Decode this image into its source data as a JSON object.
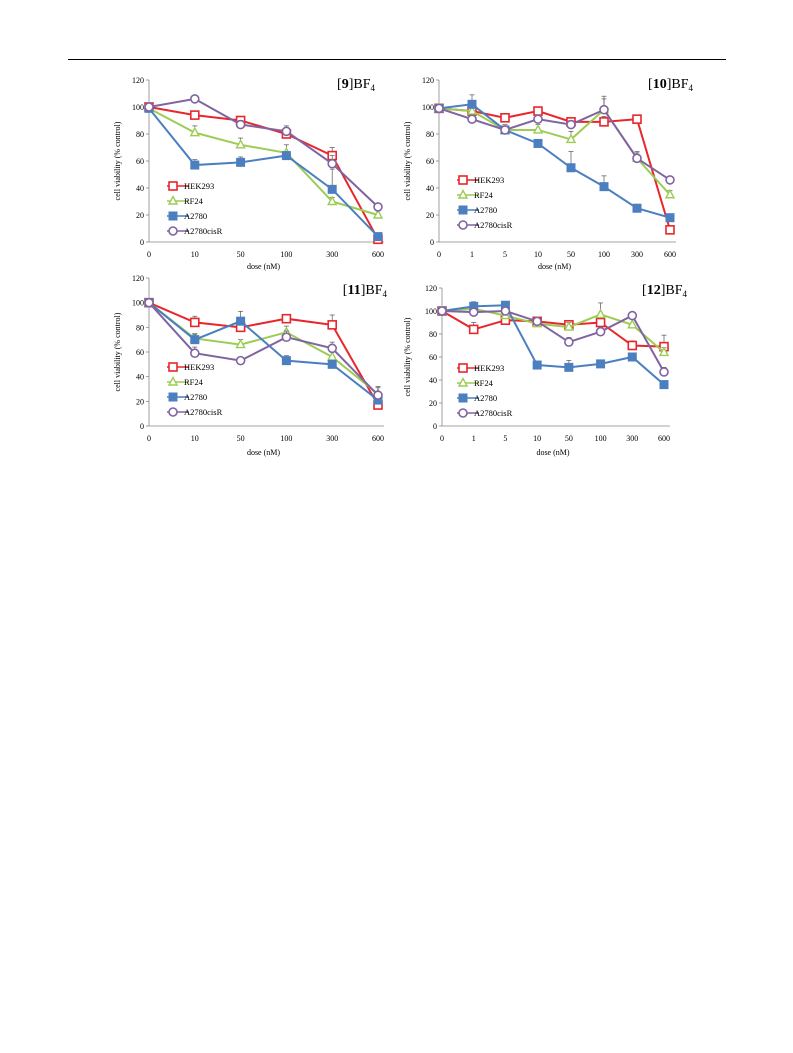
{
  "chart_data": [
    {
      "type": "line",
      "title_bold": "9",
      "title_rest": "BF",
      "title_sub": "4",
      "xlabel": "dose (nM)",
      "ylabel": "cell viability  (% control)",
      "categories": [
        "0",
        "10",
        "50",
        "100",
        "300",
        "600"
      ],
      "ylim": [
        0,
        120
      ],
      "yticks": [
        0,
        20,
        40,
        60,
        80,
        100,
        120
      ],
      "legend_position": "bottom-left",
      "series": [
        {
          "name": "HEK293",
          "color": "#e8262b",
          "marker": "square-open",
          "values": [
            100,
            94,
            90,
            80,
            64,
            2
          ],
          "errors": [
            3,
            2,
            3,
            3,
            6,
            2
          ]
        },
        {
          "name": "RF24",
          "color": "#9ccc54",
          "marker": "triangle-open",
          "values": [
            99,
            81,
            72,
            66,
            30,
            20
          ],
          "errors": [
            3,
            5,
            5,
            6,
            3,
            3
          ]
        },
        {
          "name": "A2780",
          "color": "#4b7fc0",
          "marker": "square-filled",
          "values": [
            99,
            57,
            59,
            64,
            39,
            4
          ],
          "errors": [
            3,
            4,
            4,
            3,
            15,
            2
          ]
        },
        {
          "name": "A2780cisR",
          "color": "#8064a2",
          "marker": "circle-open",
          "values": [
            100,
            106,
            87,
            82,
            58,
            26
          ],
          "errors": [
            3,
            2,
            3,
            4,
            6,
            2
          ]
        }
      ]
    },
    {
      "type": "line",
      "title_bold": "10",
      "title_rest": "BF",
      "title_sub": "4",
      "xlabel": "dose (nM)",
      "ylabel": "cell viability  (% control)",
      "categories": [
        "0",
        "1",
        "5",
        "10",
        "50",
        "100",
        "300",
        "600"
      ],
      "ylim": [
        0,
        120
      ],
      "yticks": [
        0,
        20,
        40,
        60,
        80,
        100,
        120
      ],
      "legend_position": "bottom-left",
      "series": [
        {
          "name": "HEK293",
          "color": "#e8262b",
          "marker": "square-open",
          "values": [
            99,
            97,
            92,
            97,
            89,
            89,
            91,
            9
          ],
          "errors": [
            2,
            2,
            3,
            3,
            3,
            4,
            2,
            2
          ]
        },
        {
          "name": "RF24",
          "color": "#9ccc54",
          "marker": "triangle-open",
          "values": [
            99,
            97,
            83,
            83,
            76,
            98,
            62,
            35
          ],
          "errors": [
            2,
            3,
            4,
            4,
            6,
            10,
            5,
            3
          ]
        },
        {
          "name": "A2780",
          "color": "#4b7fc0",
          "marker": "square-filled",
          "values": [
            99,
            102,
            83,
            73,
            55,
            41,
            25,
            18
          ],
          "errors": [
            2,
            7,
            3,
            3,
            12,
            8,
            3,
            2
          ]
        },
        {
          "name": "A2780cisR",
          "color": "#8064a2",
          "marker": "circle-open",
          "values": [
            99,
            91,
            83,
            91,
            87,
            98,
            62,
            46
          ],
          "errors": [
            2,
            3,
            3,
            3,
            3,
            8,
            4,
            2
          ]
        }
      ]
    },
    {
      "type": "line",
      "title_bold": "11",
      "title_rest": "BF",
      "title_sub": "4",
      "xlabel": "dose (nM)",
      "ylabel": "cell viability  (% control)",
      "categories": [
        "0",
        "10",
        "50",
        "100",
        "300",
        "600"
      ],
      "ylim": [
        0,
        120
      ],
      "yticks": [
        0,
        20,
        40,
        60,
        80,
        100,
        120
      ],
      "legend_position": "bottom-left",
      "series": [
        {
          "name": "HEK293",
          "color": "#e8262b",
          "marker": "square-open",
          "values": [
            100,
            84,
            80,
            87,
            82,
            17
          ],
          "errors": [
            3,
            5,
            3,
            3,
            8,
            2
          ]
        },
        {
          "name": "RF24",
          "color": "#9ccc54",
          "marker": "triangle-open",
          "values": [
            100,
            71,
            66,
            76,
            56,
            26
          ],
          "errors": [
            3,
            4,
            4,
            5,
            6,
            6
          ]
        },
        {
          "name": "A2780",
          "color": "#4b7fc0",
          "marker": "square-filled",
          "values": [
            100,
            70,
            85,
            53,
            50,
            21
          ],
          "errors": [
            3,
            4,
            8,
            4,
            3,
            2
          ]
        },
        {
          "name": "A2780cisR",
          "color": "#8064a2",
          "marker": "circle-open",
          "values": [
            100,
            59,
            53,
            72,
            63,
            25
          ],
          "errors": [
            3,
            5,
            3,
            5,
            5,
            6
          ]
        }
      ]
    },
    {
      "type": "line",
      "title_bold": "12",
      "title_rest": "BF",
      "title_sub": "4",
      "xlabel": "dose (nM)",
      "ylabel": "cell viability  (% control)",
      "categories": [
        "0",
        "1",
        "5",
        "10",
        "50",
        "100",
        "300",
        "600"
      ],
      "ylim": [
        0,
        120
      ],
      "yticks": [
        0,
        20,
        40,
        60,
        80,
        100,
        120
      ],
      "legend_position": "bottom-left",
      "series": [
        {
          "name": "HEK293",
          "color": "#e8262b",
          "marker": "square-open",
          "values": [
            100,
            84,
            92,
            91,
            88,
            90,
            70,
            69
          ],
          "errors": [
            3,
            6,
            4,
            3,
            3,
            6,
            4,
            10
          ]
        },
        {
          "name": "RF24",
          "color": "#9ccc54",
          "marker": "triangle-open",
          "values": [
            100,
            102,
            96,
            89,
            86,
            97,
            88,
            64
          ],
          "errors": [
            3,
            3,
            3,
            3,
            4,
            10,
            5,
            4
          ]
        },
        {
          "name": "A2780",
          "color": "#4b7fc0",
          "marker": "square-filled",
          "values": [
            100,
            104,
            105,
            53,
            51,
            54,
            60,
            36
          ],
          "errors": [
            3,
            4,
            3,
            3,
            6,
            2,
            3,
            3
          ]
        },
        {
          "name": "A2780cisR",
          "color": "#8064a2",
          "marker": "circle-open",
          "values": [
            100,
            99,
            100,
            91,
            73,
            82,
            96,
            47
          ],
          "errors": [
            3,
            3,
            3,
            3,
            4,
            4,
            3,
            4
          ]
        }
      ]
    }
  ]
}
